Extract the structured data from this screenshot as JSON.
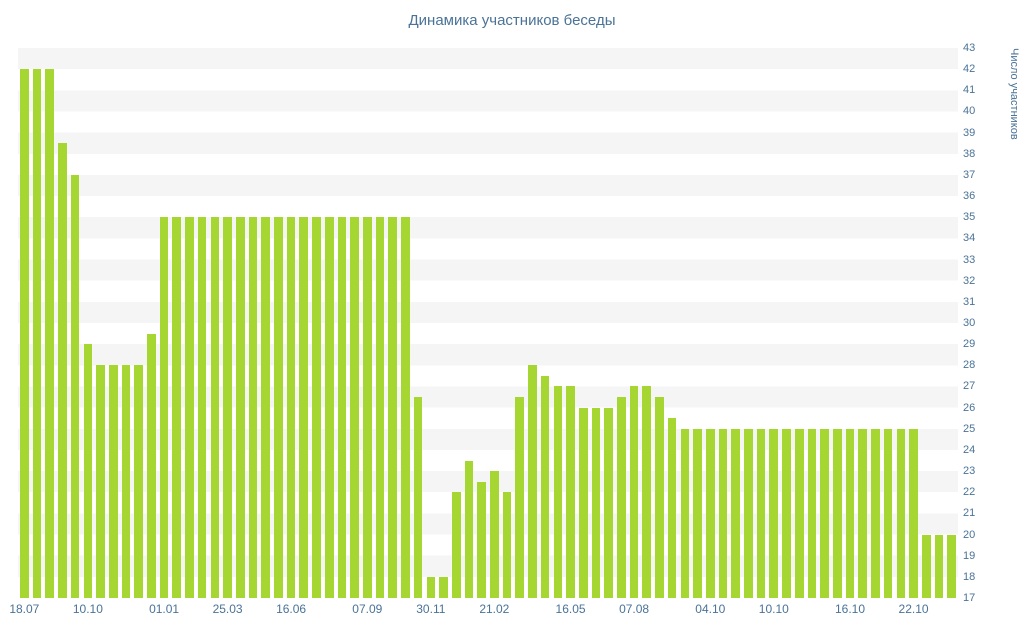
{
  "chart_data": {
    "type": "bar",
    "title": "Динамика участников беседы",
    "xlabel": "",
    "ylabel": "Число участников",
    "ylim": [
      17,
      43
    ],
    "y_ticks": [
      43,
      42,
      41,
      40,
      39,
      38,
      37,
      36,
      35,
      34,
      33,
      32,
      31,
      30,
      29,
      28,
      27,
      26,
      25,
      24,
      23,
      22,
      21,
      20,
      19,
      18,
      17
    ],
    "x_tick_labels": [
      {
        "label": "18.07",
        "bar": 0
      },
      {
        "label": "10.10",
        "bar": 5
      },
      {
        "label": "01.01",
        "bar": 11
      },
      {
        "label": "25.03",
        "bar": 16
      },
      {
        "label": "16.06",
        "bar": 21
      },
      {
        "label": "07.09",
        "bar": 27
      },
      {
        "label": "30.11",
        "bar": 32
      },
      {
        "label": "21.02",
        "bar": 37
      },
      {
        "label": "16.05",
        "bar": 43
      },
      {
        "label": "07.08",
        "bar": 48
      },
      {
        "label": "04.10",
        "bar": 54
      },
      {
        "label": "10.10",
        "bar": 59
      },
      {
        "label": "16.10",
        "bar": 65
      },
      {
        "label": "22.10",
        "bar": 70
      }
    ],
    "values": [
      42,
      42,
      42,
      38.5,
      37,
      29,
      28,
      28,
      28,
      28,
      29.5,
      35,
      35,
      35,
      35,
      35,
      35,
      35,
      35,
      35,
      35,
      35,
      35,
      35,
      35,
      35,
      35,
      35,
      35,
      35,
      35,
      26.5,
      18,
      18,
      22,
      23.5,
      22.5,
      23,
      22,
      26.5,
      28,
      27.5,
      27,
      27,
      26,
      26,
      26,
      26.5,
      27,
      27,
      26.5,
      25.5,
      25,
      25,
      25,
      25,
      25,
      25,
      25,
      25,
      25,
      25,
      25,
      25,
      25,
      25,
      25,
      25,
      25,
      25,
      25,
      20,
      20,
      20
    ],
    "grid": "horizontal-stripes",
    "legend": "none",
    "y_axis_side": "right"
  },
  "style": {
    "bar_color": "#a6d632",
    "axis_text_color": "#4a7397",
    "title_color": "#4a7397",
    "stripe_color": "#f5f5f5",
    "background": "#ffffff"
  }
}
